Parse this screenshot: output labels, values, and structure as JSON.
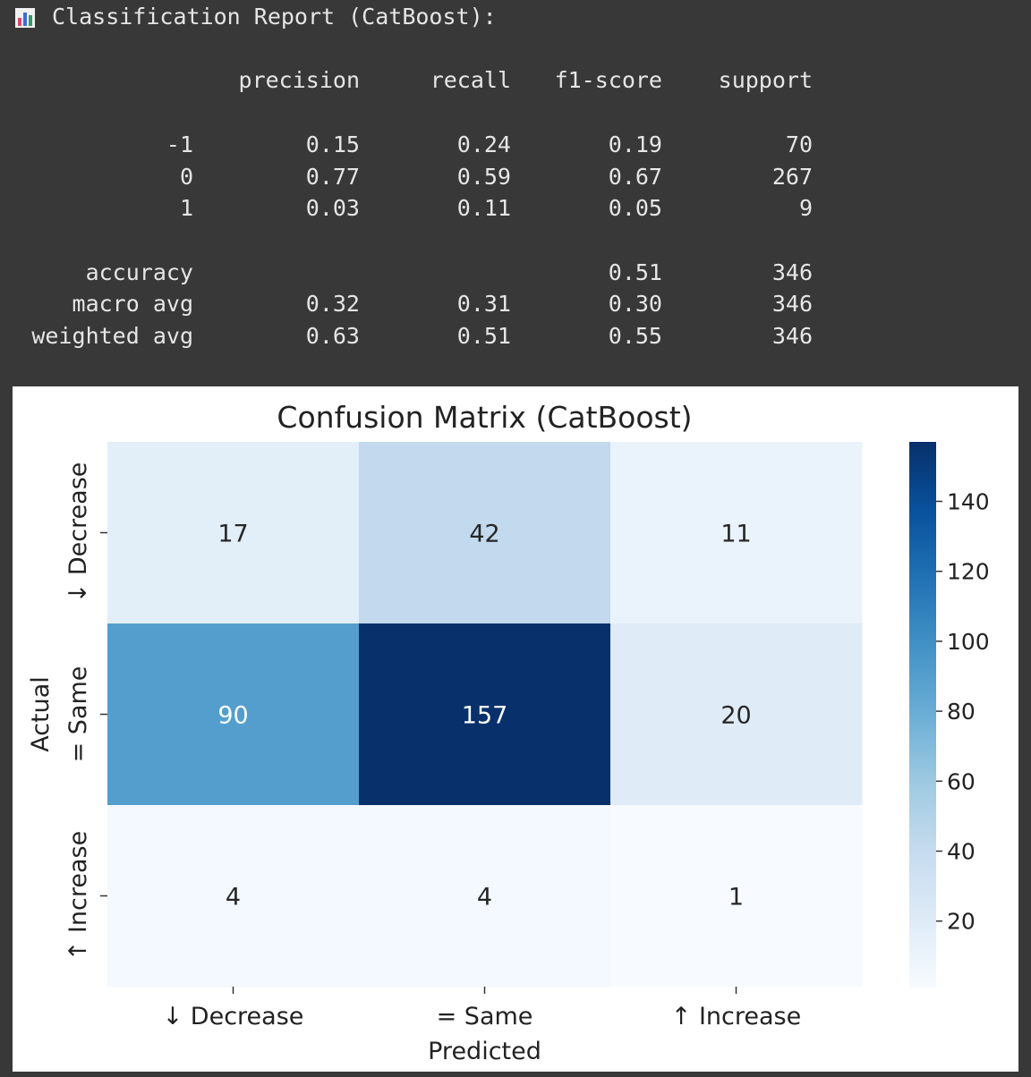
{
  "report": {
    "heading": "Classification Report (CatBoost):",
    "heading_icon": "bar-chart-icon",
    "columns": [
      "precision",
      "recall",
      "f1-score",
      "support"
    ],
    "class_rows": [
      {
        "label": "-1",
        "values": [
          "0.15",
          "0.24",
          "0.19",
          "70"
        ]
      },
      {
        "label": "0",
        "values": [
          "0.77",
          "0.59",
          "0.67",
          "267"
        ]
      },
      {
        "label": "1",
        "values": [
          "0.03",
          "0.11",
          "0.05",
          "9"
        ]
      }
    ],
    "summary_rows": [
      {
        "label": "accuracy",
        "values": [
          "",
          "",
          "0.51",
          "346"
        ]
      },
      {
        "label": "macro avg",
        "values": [
          "0.32",
          "0.31",
          "0.30",
          "346"
        ]
      },
      {
        "label": "weighted avg",
        "values": [
          "0.63",
          "0.51",
          "0.55",
          "346"
        ]
      }
    ]
  },
  "chart_data": {
    "type": "heatmap",
    "title": "Confusion Matrix (CatBoost)",
    "xlabel": "Predicted",
    "ylabel": "Actual",
    "x_categories": [
      "↓ Decrease",
      "= Same",
      "↑ Increase"
    ],
    "y_categories": [
      "↓ Decrease",
      "= Same",
      "↑ Increase"
    ],
    "values": [
      [
        17,
        42,
        11
      ],
      [
        90,
        157,
        20
      ],
      [
        4,
        4,
        1
      ]
    ],
    "colormap": "Blues",
    "colorbar": {
      "min": 1,
      "max": 157,
      "ticks": [
        20,
        40,
        60,
        80,
        100,
        120,
        140
      ]
    }
  }
}
